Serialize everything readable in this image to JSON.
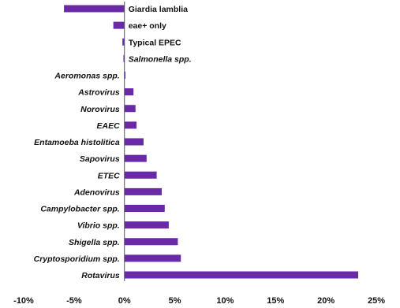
{
  "chart_data": {
    "type": "bar",
    "orientation": "horizontal",
    "title": "",
    "xlabel": "",
    "ylabel": "",
    "xlim": [
      -0.1,
      0.25
    ],
    "x_ticks": [
      -0.1,
      -0.05,
      0.0,
      0.05,
      0.1,
      0.15,
      0.2,
      0.25
    ],
    "x_tick_labels": [
      "-10%",
      "-5%",
      "0%",
      "5%",
      "10%",
      "15%",
      "20%",
      "25%"
    ],
    "grid": false,
    "legend": "none",
    "bar_color": "#6a2aa8",
    "categories": [
      {
        "label": "Giardia lamblia",
        "italic": false,
        "value": -0.06
      },
      {
        "label": "eae+ only",
        "italic": false,
        "value": -0.011
      },
      {
        "label": "Typical EPEC",
        "italic": false,
        "value": -0.002
      },
      {
        "label": "Salmonella spp.",
        "italic": true,
        "value": -0.001
      },
      {
        "label": "Aeromonas spp.",
        "italic": true,
        "value": 0.001
      },
      {
        "label": "Astrovirus",
        "italic": true,
        "value": 0.009
      },
      {
        "label": "Norovirus",
        "italic": true,
        "value": 0.011
      },
      {
        "label": "EAEC",
        "italic": true,
        "value": 0.012
      },
      {
        "label": "Entamoeba histolitica",
        "italic": true,
        "value": 0.019
      },
      {
        "label": "Sapovirus",
        "italic": true,
        "value": 0.022
      },
      {
        "label": "ETEC",
        "italic": true,
        "value": 0.032
      },
      {
        "label": "Adenovirus",
        "italic": true,
        "value": 0.037
      },
      {
        "label": "Campylobacter spp.",
        "italic": true,
        "value": 0.04
      },
      {
        "label": "Vibrio spp.",
        "italic": true,
        "value": 0.044
      },
      {
        "label": "Shigella spp.",
        "italic": true,
        "value": 0.053
      },
      {
        "label": "Cryptosporidium spp.",
        "italic": true,
        "value": 0.056
      },
      {
        "label": "Rotavirus",
        "italic": true,
        "value": 0.232
      }
    ]
  }
}
